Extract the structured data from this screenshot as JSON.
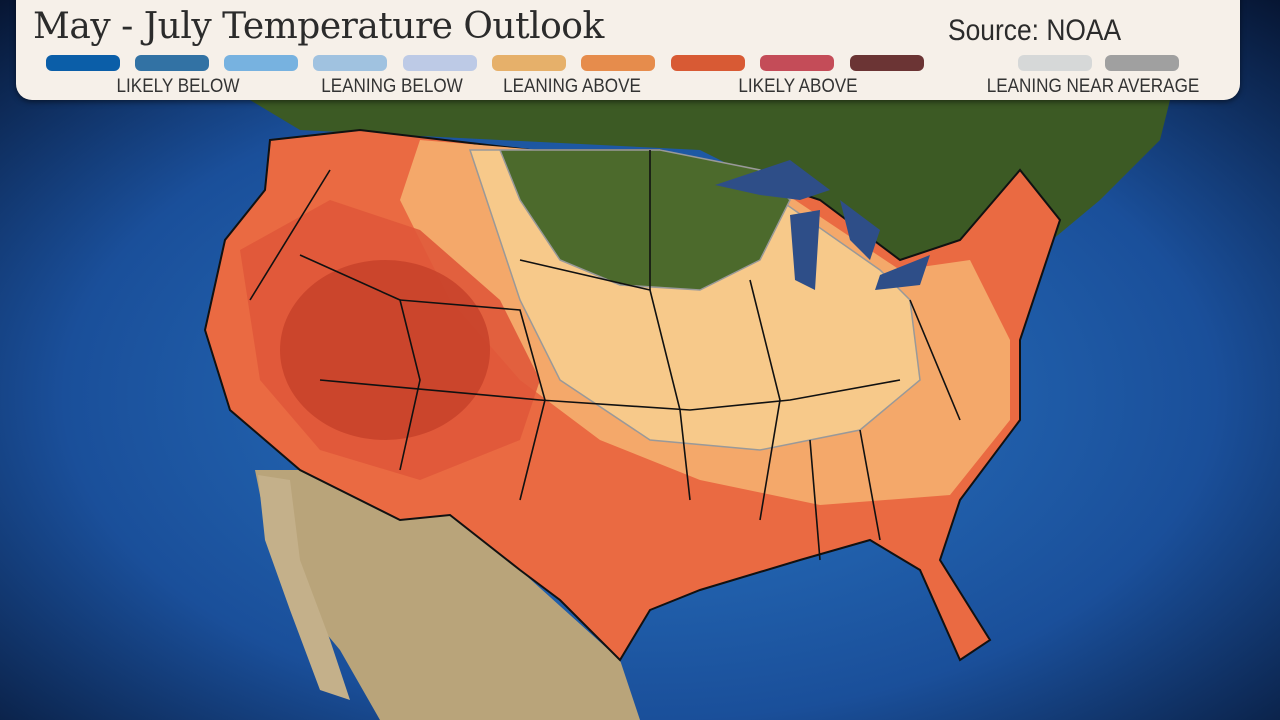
{
  "header": {
    "title": "May - July Temperature Outlook",
    "source": "Source: NOAA"
  },
  "legend": {
    "swatches": [
      {
        "category": "below",
        "color": "#0b5ea8"
      },
      {
        "category": "below",
        "color": "#3272a4"
      },
      {
        "category": "below",
        "color": "#77b2e0"
      },
      {
        "category": "below",
        "color": "#a0c2e0"
      },
      {
        "category": "below",
        "color": "#bdcae6"
      },
      {
        "category": "above",
        "color": "#e6b06a"
      },
      {
        "category": "above",
        "color": "#e68c4c"
      },
      {
        "category": "above",
        "color": "#d85a34"
      },
      {
        "category": "above",
        "color": "#c44c58"
      },
      {
        "category": "above",
        "color": "#6b3434"
      },
      {
        "category": "near",
        "color": "#d6d8d8"
      },
      {
        "category": "near",
        "color": "#a0a0a0"
      }
    ],
    "labels": {
      "likely_below": "LIKELY BELOW",
      "leaning_below": "LEANING BELOW",
      "leaning_above": "LEANING ABOVE",
      "likely_above": "LIKELY ABOVE",
      "leaning_near_average": "LEANING NEAR AVERAGE"
    }
  },
  "map_colors": {
    "ocean": "#1a4f9a",
    "canada": "#3c5a24",
    "mexico": "#b9a47a",
    "near_normal": "#4c6a2c",
    "leaning_above_light": "#f7c98a",
    "leaning_above": "#f4a86a",
    "likely_above": "#ea6a42",
    "likely_above_strong": "#d2452a"
  }
}
